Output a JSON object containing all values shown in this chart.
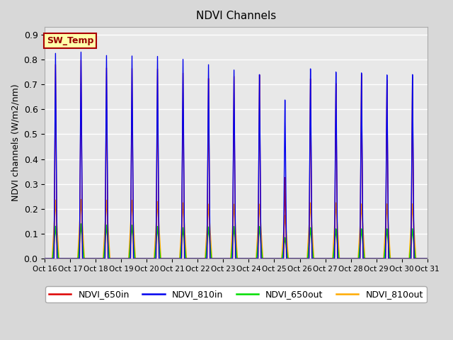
{
  "title": "NDVI Channels",
  "ylabel": "NDVI channels (W/m2/nm)",
  "ylim": [
    0.0,
    0.93
  ],
  "yticks": [
    0.0,
    0.1,
    0.2,
    0.3,
    0.4,
    0.5,
    0.6,
    0.7,
    0.8,
    0.9
  ],
  "xtick_labels": [
    "Oct 16",
    "Oct 17",
    "Oct 18",
    "Oct 19",
    "Oct 20",
    "Oct 21",
    "Oct 22",
    "Oct 23",
    "Oct 24",
    "Oct 25",
    "Oct 26",
    "Oct 27",
    "Oct 28",
    "Oct 29",
    "Oct 30",
    "Oct 31"
  ],
  "fig_bg_color": "#d8d8d8",
  "plot_bg_color": "#e8e8e8",
  "grid_color": "#ffffff",
  "colors": {
    "NDVI_650in": "#dd0000",
    "NDVI_810in": "#0000ee",
    "NDVI_650out": "#00dd00",
    "NDVI_810out": "#ffaa00"
  },
  "sw_temp_text_color": "#990000",
  "sw_temp_bg": "#ffffaa",
  "sw_temp_edge": "#aa0000",
  "peaks_810in": [
    0.825,
    0.832,
    0.82,
    0.82,
    0.82,
    0.81,
    0.79,
    0.77,
    0.75,
    0.645,
    0.77,
    0.755,
    0.75,
    0.74,
    0.74
  ],
  "peaks_650in": [
    0.78,
    0.8,
    0.77,
    0.77,
    0.77,
    0.755,
    0.735,
    0.745,
    0.75,
    0.33,
    0.73,
    0.71,
    0.745,
    0.72,
    0.73
  ],
  "peaks_650out": [
    0.13,
    0.14,
    0.135,
    0.135,
    0.13,
    0.125,
    0.128,
    0.13,
    0.13,
    0.085,
    0.125,
    0.12,
    0.12,
    0.12,
    0.12
  ],
  "peaks_810out": [
    0.235,
    0.238,
    0.235,
    0.235,
    0.23,
    0.225,
    0.22,
    0.22,
    0.22,
    0.175,
    0.225,
    0.225,
    0.22,
    0.22,
    0.22
  ],
  "n_days": 15
}
